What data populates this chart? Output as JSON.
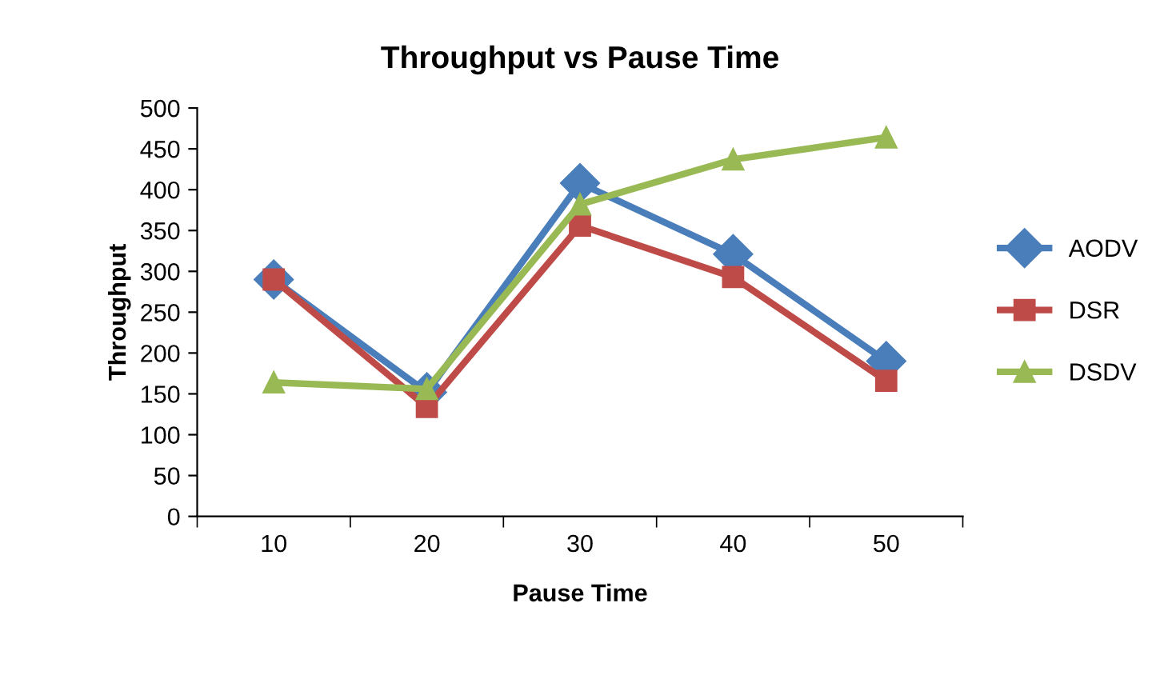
{
  "chart_data": {
    "type": "line",
    "title": "Throughput vs Pause Time",
    "xlabel": "Pause Time",
    "ylabel": "Throughput",
    "categories": [
      "10",
      "20",
      "30",
      "40",
      "50"
    ],
    "series": [
      {
        "name": "AODV",
        "color": "#4a7ebb",
        "marker": "diamond",
        "values": [
          290,
          152,
          408,
          321,
          190
        ]
      },
      {
        "name": "DSR",
        "color": "#be4b48",
        "marker": "square",
        "values": [
          290,
          134,
          356,
          293,
          166
        ]
      },
      {
        "name": "DSDV",
        "color": "#98b954",
        "marker": "triangle",
        "values": [
          164,
          156,
          382,
          437,
          464
        ]
      }
    ],
    "ylim": [
      0,
      500
    ],
    "yticks": [
      0,
      50,
      100,
      150,
      200,
      250,
      300,
      350,
      400,
      450,
      500
    ],
    "grid": false,
    "legend": "right",
    "line_style": "solid"
  }
}
